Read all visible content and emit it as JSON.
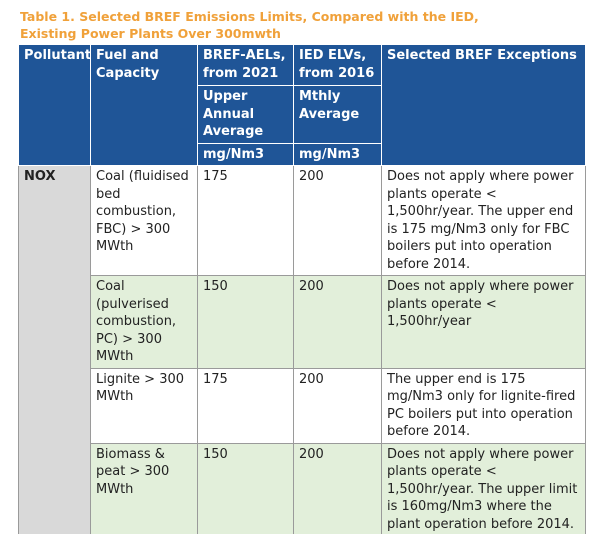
{
  "title": [
    "Table 1. Selected BREF Emissions Limits, Compared with the IED,",
    "Existing Power Plants Over 300mwth"
  ],
  "table": {
    "header": [
      "Pollutant",
      "Fuel and Capacity",
      "BREF-AELs, from 2021",
      "IED ELVs, from 2016",
      "Selected BREF Exceptions"
    ],
    "subheader": [
      "Upper Annual Average",
      "Mthly Average"
    ],
    "units": [
      "mg/Nm3",
      "mg/Nm3"
    ],
    "pollutant": "NOX",
    "rows": [
      [
        "Coal (fluidised bed combustion, FBC) > 300 MWth",
        175,
        200,
        "Does not apply where power plants operate < 1,500hr/year. The upper end is 175 mg/Nm3 only for FBC boilers put into operation before 2014."
      ],
      [
        "Coal (pulverised combustion, PC) > 300 MWth",
        150,
        200,
        "Does not apply where power plants operate < 1,500hr/year"
      ],
      [
        "Lignite > 300 MWth",
        175,
        200,
        "The upper end is 175 mg/Nm3 only for lignite-fired PC boilers put into operation before 2014."
      ],
      [
        "Biomass & peat > 300 MWth",
        150,
        200,
        "Does not apply where power plants operate < 1,500hr/year. The upper limit is 160mg/Nm3 where the plant operation before 2014."
      ]
    ]
  }
}
